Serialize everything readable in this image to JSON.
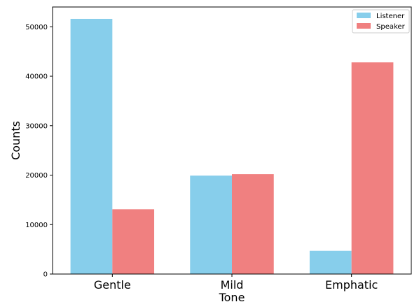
{
  "chart_data": {
    "type": "bar",
    "categories": [
      "Gentle",
      "Mild",
      "Emphatic"
    ],
    "series": [
      {
        "name": "Listener",
        "values": [
          51600,
          19900,
          4700
        ],
        "color": "#87CEEB"
      },
      {
        "name": "Speaker",
        "values": [
          13100,
          20200,
          42800
        ],
        "color": "#F08080"
      }
    ],
    "xlabel": "Tone",
    "ylabel": "Counts",
    "ylim": [
      0,
      54000
    ],
    "yticks": [
      0,
      10000,
      20000,
      30000,
      40000,
      50000
    ],
    "ytick_labels": [
      "0",
      "10000",
      "20000",
      "30000",
      "40000",
      "50000"
    ],
    "grid": false,
    "legend_position": "top-right"
  }
}
